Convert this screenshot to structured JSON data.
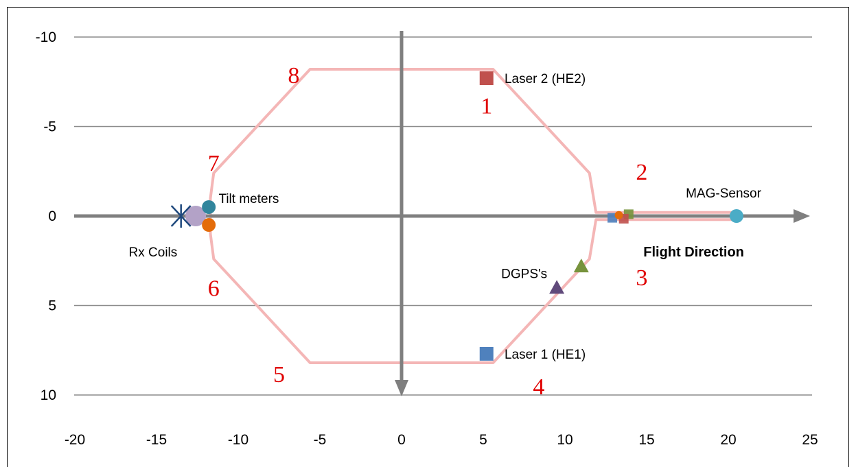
{
  "chart_data": {
    "type": "scatter",
    "title": "",
    "xlabel": "",
    "ylabel": "",
    "xlim": [
      -20,
      25
    ],
    "ylim": [
      -10,
      10
    ],
    "y_axis_inverted": true,
    "x_ticks": [
      "-20",
      "-15",
      "-10",
      "-5",
      "0",
      "5",
      "10",
      "15",
      "20",
      "25"
    ],
    "x_tick_values": [
      -20,
      -15,
      -10,
      -5,
      0,
      5,
      10,
      15,
      20,
      25
    ],
    "y_ticks": [
      "-10",
      "-5",
      "0",
      "5",
      "10"
    ],
    "y_tick_values": [
      -10,
      -5,
      0,
      5,
      10
    ],
    "gridlines": "horizontal",
    "colors": {
      "grid": "#8c8c8c",
      "axis_arrow": "#7f7f7f",
      "outline": "#f4b6b6",
      "number": "#e00000",
      "laser2": "#c0504d",
      "laser1": "#4f81bd",
      "dgps_green": "#77933c",
      "dgps_purple": "#604a7b",
      "mag": "#4bacc6",
      "tilt_teal": "#31859c",
      "tilt_orange": "#e46c0a",
      "rx_purple": "#b3a2c7",
      "rx_cross": "#1f497d"
    },
    "outline_polygon": [
      [
        -5.6,
        -8.2
      ],
      [
        5.6,
        -8.2
      ],
      [
        11.5,
        -2.4
      ],
      [
        11.9,
        -0.2
      ],
      [
        20.5,
        -0.2
      ],
      [
        20.5,
        0.2
      ],
      [
        11.9,
        0.2
      ],
      [
        11.5,
        2.4
      ],
      [
        5.6,
        8.2
      ],
      [
        -5.6,
        8.2
      ],
      [
        -11.5,
        2.4
      ],
      [
        -11.7,
        1.0
      ],
      [
        -11.7,
        -1.0
      ],
      [
        -11.5,
        -2.4
      ]
    ],
    "series": [
      {
        "name": "Laser 2 (HE2)",
        "marker": "square",
        "color": "#c0504d",
        "points": [
          [
            5.2,
            -7.7
          ]
        ]
      },
      {
        "name": "Laser 1 (HE1)",
        "marker": "square",
        "color": "#4f81bd",
        "points": [
          [
            5.2,
            7.7
          ]
        ]
      },
      {
        "name": "",
        "marker": "triangle",
        "color": "#77933c",
        "points": [
          [
            11.0,
            2.8
          ]
        ]
      },
      {
        "name": "",
        "marker": "triangle",
        "color": "#604a7b",
        "points": [
          [
            9.5,
            4.0
          ]
        ]
      },
      {
        "name": "MAG-Sensor",
        "marker": "circle",
        "color": "#4bacc6",
        "points": [
          [
            20.5,
            0
          ]
        ]
      },
      {
        "name": "",
        "marker": "circle",
        "color": "#31859c",
        "points": [
          [
            -11.8,
            -0.5
          ]
        ]
      },
      {
        "name": "",
        "marker": "circle",
        "color": "#e46c0a",
        "points": [
          [
            -11.8,
            0.5
          ]
        ]
      },
      {
        "name": "",
        "marker": "circle-large",
        "color": "#b3a2c7",
        "points": [
          [
            -12.6,
            0
          ]
        ]
      },
      {
        "name": "Rx Coils",
        "marker": "asterisk",
        "color": "#1f497d",
        "points": [
          [
            -13.5,
            0
          ]
        ]
      },
      {
        "name": "",
        "marker": "small-square",
        "color": "#4f81bd",
        "points": [
          [
            12.9,
            0.1
          ]
        ]
      },
      {
        "name": "",
        "marker": "small-square",
        "color": "#77933c",
        "points": [
          [
            13.9,
            -0.1
          ]
        ]
      },
      {
        "name": "",
        "marker": "small-square",
        "color": "#c0504d",
        "points": [
          [
            13.6,
            0.15
          ]
        ]
      },
      {
        "name": "",
        "marker": "small-circle",
        "color": "#e46c0a",
        "points": [
          [
            13.3,
            -0.05
          ]
        ]
      }
    ],
    "annotations": [
      {
        "text": "Laser 2 (HE2)",
        "x": 6.3,
        "y": -7.7,
        "style": "label"
      },
      {
        "text": "Laser 1 (HE1)",
        "x": 6.3,
        "y": 7.7,
        "style": "label"
      },
      {
        "text": "DGPS's",
        "x": 6.1,
        "y": 3.2,
        "style": "label"
      },
      {
        "text": "MAG-Sensor",
        "x": 17.4,
        "y": -1.3,
        "style": "label"
      },
      {
        "text": "Tilt meters",
        "x": -11.2,
        "y": -1.0,
        "style": "label"
      },
      {
        "text": "Rx Coils",
        "x": -16.7,
        "y": 2.0,
        "style": "label"
      },
      {
        "text": "Flight Direction",
        "x": 14.8,
        "y": 2.0,
        "style": "bold"
      },
      {
        "text": "1",
        "x": 5.2,
        "y": -6.0,
        "style": "number"
      },
      {
        "text": "2",
        "x": 14.7,
        "y": -2.3,
        "style": "number"
      },
      {
        "text": "3",
        "x": 14.7,
        "y": 3.6,
        "style": "number"
      },
      {
        "text": "4",
        "x": 8.4,
        "y": 9.7,
        "style": "number"
      },
      {
        "text": "5",
        "x": -7.5,
        "y": 9.0,
        "style": "number"
      },
      {
        "text": "6",
        "x": -11.5,
        "y": 4.2,
        "style": "number"
      },
      {
        "text": "7",
        "x": -11.5,
        "y": -2.8,
        "style": "number"
      },
      {
        "text": "8",
        "x": -6.6,
        "y": -7.7,
        "style": "number"
      }
    ]
  }
}
